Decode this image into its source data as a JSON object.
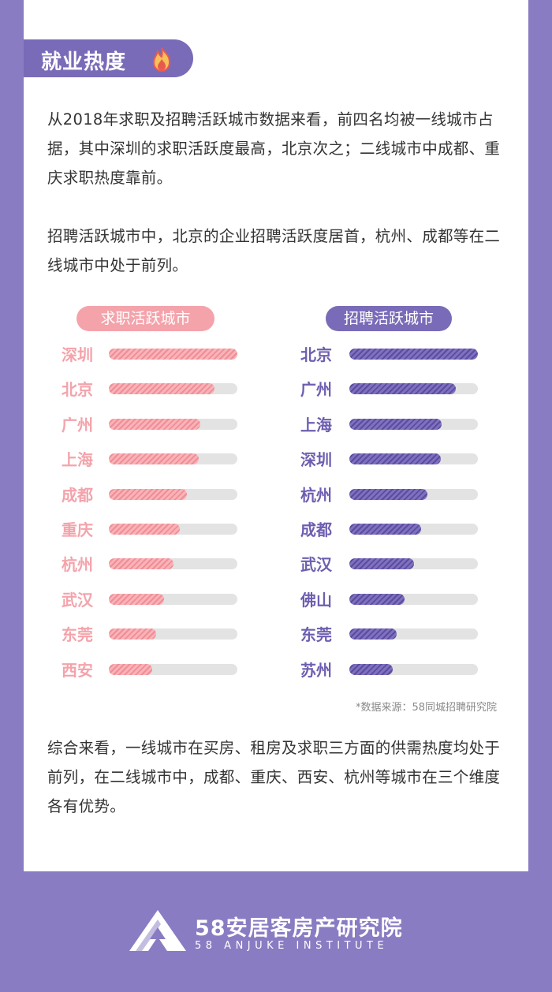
{
  "section": {
    "title": "就业热度",
    "icon": "fire-icon"
  },
  "paragraphs": {
    "p1": "从2018年求职及招聘活跃城市数据来看，前四名均被一线城市占据，其中深圳的求职活跃度最高，北京次之；二线城市中成都、重庆求职热度靠前。",
    "p2": "招聘活跃城市中，北京的企业招聘活跃度居首，杭州、成都等在二线城市中处于前列。",
    "p3": "综合来看，一线城市在买房、租房及求职三方面的供需热度均处于前列，在二线城市中，成都、重庆、西安、杭州等城市在三个维度各有优势。"
  },
  "source": "*数据来源：58同城招聘研究院",
  "footer": {
    "cn": "58安居客房产研究院",
    "en": "58 ANJUKE INSTITUTE"
  },
  "colors": {
    "pink": "#f4a3ab",
    "purple": "#7a6bb8",
    "background": "#8a7cc2"
  },
  "chart_data": [
    {
      "type": "bar",
      "orientation": "horizontal",
      "title": "求职活跃城市",
      "categories": [
        "深圳",
        "北京",
        "广州",
        "上海",
        "成都",
        "重庆",
        "杭州",
        "武汉",
        "东莞",
        "西安"
      ],
      "values": [
        1.0,
        0.82,
        0.71,
        0.7,
        0.61,
        0.55,
        0.5,
        0.43,
        0.37,
        0.34
      ]
    },
    {
      "type": "bar",
      "orientation": "horizontal",
      "title": "招聘活跃城市",
      "categories": [
        "北京",
        "广州",
        "上海",
        "深圳",
        "杭州",
        "成都",
        "武汉",
        "佛山",
        "东莞",
        "苏州"
      ],
      "values": [
        1.0,
        0.83,
        0.72,
        0.71,
        0.61,
        0.56,
        0.5,
        0.43,
        0.37,
        0.34
      ]
    }
  ]
}
